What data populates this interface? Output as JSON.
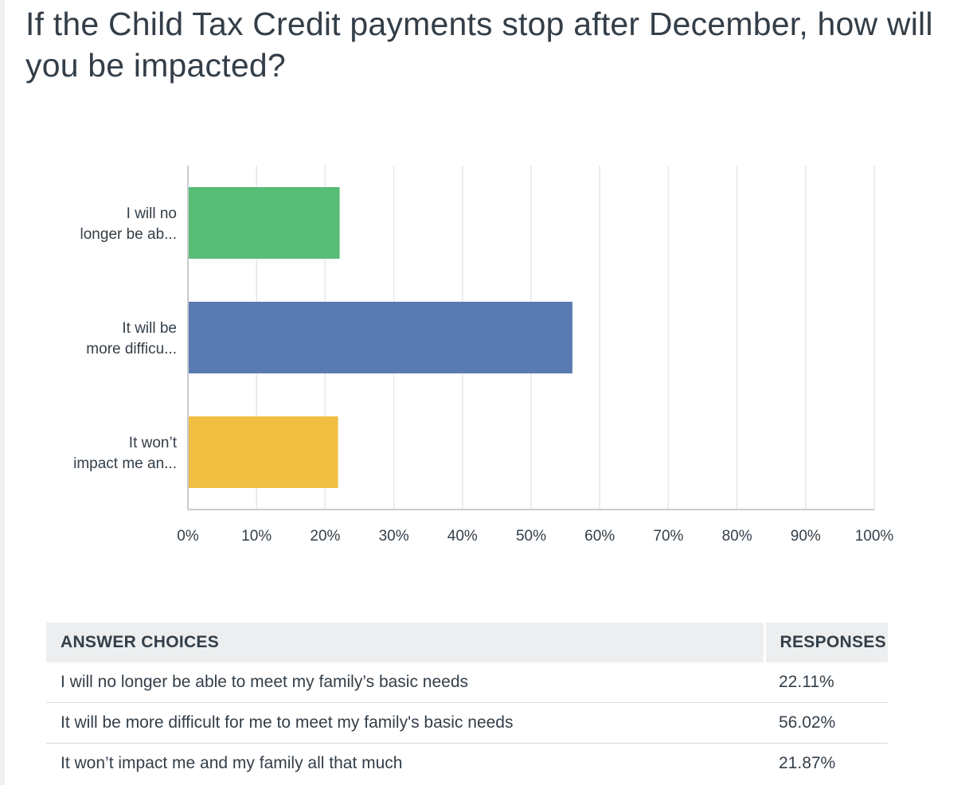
{
  "title": "If the Child Tax Credit payments stop after December, how will you be impacted?",
  "chart_data": {
    "type": "bar",
    "orientation": "horizontal",
    "title": "",
    "xlabel": "",
    "ylabel": "",
    "xlim": [
      0,
      100
    ],
    "grid": true,
    "legend": "none",
    "x_ticks": [
      "0%",
      "10%",
      "20%",
      "30%",
      "40%",
      "50%",
      "60%",
      "70%",
      "80%",
      "90%",
      "100%"
    ],
    "categories": [
      [
        "I will no",
        "longer be ab..."
      ],
      [
        "It will be",
        "more difficu..."
      ],
      [
        "It won’t",
        "impact me an..."
      ]
    ],
    "values": [
      22.11,
      56.02,
      21.87
    ],
    "colors": [
      "#57bc76",
      "#5a7bb1",
      "#f0bf42"
    ]
  },
  "table": {
    "headers": [
      "ANSWER CHOICES",
      "RESPONSES"
    ],
    "rows": [
      {
        "choice": "I will no longer be able to meet my family’s basic needs",
        "response": "22.11%"
      },
      {
        "choice": "It will be more difficult for me to meet my family's basic needs",
        "response": "56.02%"
      },
      {
        "choice": "It won’t impact me and my family all that much",
        "response": "21.87%"
      }
    ]
  }
}
